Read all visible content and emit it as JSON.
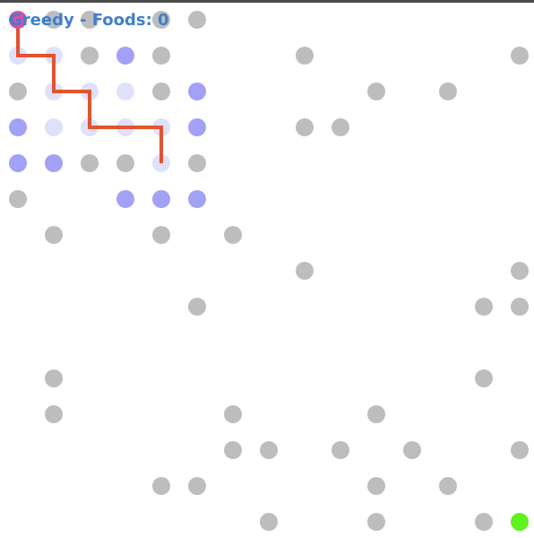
{
  "title": "Greedy - Foods: 0",
  "grid": {
    "cols": 15,
    "rows": 15
  },
  "colors": {
    "obstacle": "#bdbdbd",
    "frontier": "#a1a1f5",
    "visited": "#dfe1fa",
    "path": "#e2532f",
    "start": "#d94fa8",
    "goal": "#5ef21e",
    "title": "#3f7fcc",
    "border": "#4a4a4a"
  },
  "cells": {
    "obstacles": [
      [
        1,
        0
      ],
      [
        2,
        0
      ],
      [
        4,
        0
      ],
      [
        5,
        0
      ],
      [
        2,
        1
      ],
      [
        4,
        1
      ],
      [
        8,
        1
      ],
      [
        14,
        1
      ],
      [
        0,
        2
      ],
      [
        4,
        2
      ],
      [
        10,
        2
      ],
      [
        12,
        2
      ],
      [
        8,
        3
      ],
      [
        9,
        3
      ],
      [
        2,
        4
      ],
      [
        3,
        4
      ],
      [
        5,
        4
      ],
      [
        0,
        5
      ],
      [
        1,
        6
      ],
      [
        4,
        6
      ],
      [
        6,
        6
      ],
      [
        8,
        7
      ],
      [
        14,
        7
      ],
      [
        5,
        8
      ],
      [
        13,
        8
      ],
      [
        14,
        8
      ],
      [
        1,
        10
      ],
      [
        13,
        10
      ],
      [
        1,
        11
      ],
      [
        6,
        11
      ],
      [
        10,
        11
      ],
      [
        6,
        12
      ],
      [
        7,
        12
      ],
      [
        9,
        12
      ],
      [
        11,
        12
      ],
      [
        14,
        12
      ],
      [
        4,
        13
      ],
      [
        5,
        13
      ],
      [
        10,
        13
      ],
      [
        12,
        13
      ],
      [
        7,
        14
      ],
      [
        10,
        14
      ],
      [
        13,
        14
      ]
    ],
    "frontier": [
      [
        3,
        1
      ],
      [
        5,
        2
      ],
      [
        0,
        3
      ],
      [
        5,
        3
      ],
      [
        0,
        4
      ],
      [
        1,
        4
      ],
      [
        3,
        5
      ],
      [
        4,
        5
      ],
      [
        5,
        5
      ]
    ],
    "visited": [
      [
        0,
        1
      ],
      [
        1,
        1
      ],
      [
        1,
        2
      ],
      [
        2,
        2
      ],
      [
        3,
        2
      ],
      [
        1,
        3
      ],
      [
        2,
        3
      ],
      [
        3,
        3
      ],
      [
        4,
        3
      ],
      [
        4,
        4
      ]
    ],
    "start": [
      0,
      0
    ],
    "goal": [
      14,
      14
    ],
    "path": [
      [
        0,
        0
      ],
      [
        0,
        1
      ],
      [
        1,
        1
      ],
      [
        1,
        2
      ],
      [
        2,
        2
      ],
      [
        2,
        3
      ],
      [
        3,
        3
      ],
      [
        4,
        3
      ],
      [
        4,
        4
      ]
    ]
  }
}
